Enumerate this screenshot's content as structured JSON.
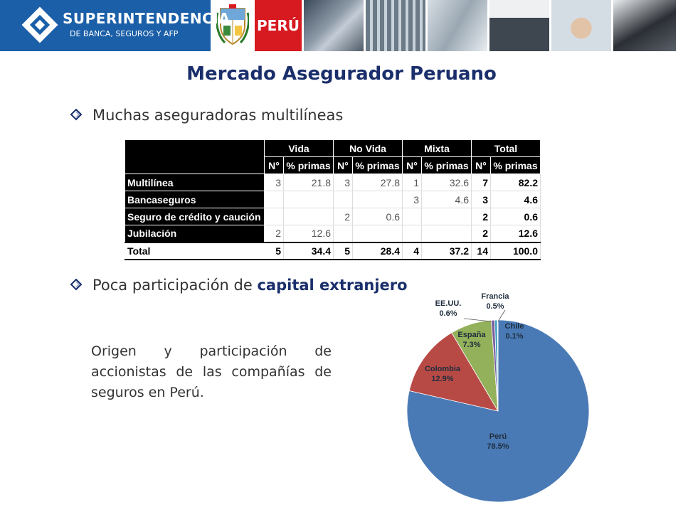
{
  "header": {
    "org_name": "SUPERINTENDENCIA",
    "org_subtitle": "DE BANCA, SEGUROS Y AFP",
    "country_label": "PERÚ"
  },
  "title": "Mercado Asegurador Peruano",
  "bullet1": {
    "text": "Muchas aseguradoras multilíneas"
  },
  "bullet2": {
    "text_plain": "Poca participación de ",
    "text_bold": "capital extranjero"
  },
  "table": {
    "groups": [
      "Vida",
      "No Vida",
      "Mixta",
      "Total"
    ],
    "subheaders": [
      "N°",
      "% primas",
      "N°",
      "% primas",
      "N°",
      "% primas",
      "N°",
      "% primas"
    ],
    "rows": [
      {
        "label": "Multilínea",
        "cells": [
          "3",
          "21.8",
          "3",
          "27.8",
          "1",
          "32.6",
          "7",
          "82.2"
        ]
      },
      {
        "label": "Bancaseguros",
        "cells": [
          "",
          "",
          "",
          "",
          "3",
          "4.6",
          "3",
          "4.6"
        ]
      },
      {
        "label": "Seguro de crédito y caución",
        "cells": [
          "",
          "",
          "2",
          "0.6",
          "",
          "",
          "2",
          "0.6"
        ]
      },
      {
        "label": "Jubilación",
        "cells": [
          "2",
          "12.6",
          "",
          "",
          "",
          "",
          "2",
          "12.6"
        ]
      }
    ],
    "total": {
      "label": "Total",
      "cells": [
        "5",
        "34.4",
        "5",
        "28.4",
        "4",
        "37.2",
        "14",
        "100.0"
      ]
    }
  },
  "caption": "Origen y participación de accionistas de las compañías de seguros en Perú.",
  "chart_data": {
    "type": "pie",
    "slices": [
      {
        "name": "Perú",
        "value": 78.5,
        "label": "78.5%",
        "color": "#4a7ab5"
      },
      {
        "name": "Colombia",
        "value": 12.9,
        "label": "12.9%",
        "color": "#b84a46"
      },
      {
        "name": "España",
        "value": 7.3,
        "label": "7.3%",
        "color": "#93b05a"
      },
      {
        "name": "EE.UU.",
        "value": 0.6,
        "label": "0.6%",
        "color": "#7b5fa0"
      },
      {
        "name": "Francia",
        "value": 0.5,
        "label": "0.5%",
        "color": "#48a5c0"
      },
      {
        "name": "Chile",
        "value": 0.1,
        "label": "0.1%",
        "color": "#e8913a"
      }
    ]
  },
  "colors": {
    "brand_blue": "#1b5fa8",
    "title_navy": "#1a2f6b",
    "peru_red": "#d71920"
  }
}
